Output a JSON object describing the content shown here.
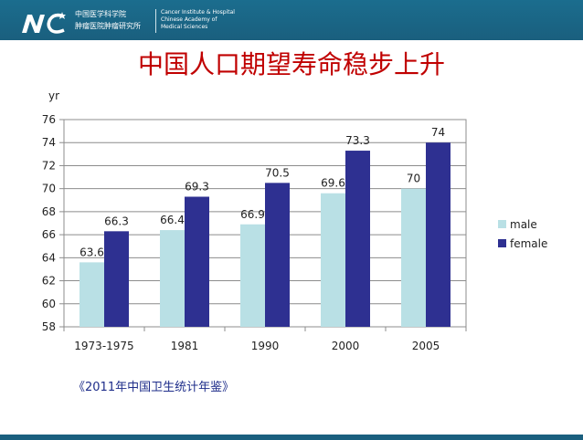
{
  "header": {
    "institution_cn_line1": "中国医学科学院",
    "institution_cn_line2": "肿瘤医院肿瘤研究所",
    "institution_en_line1": "Cancer Institute & Hospital",
    "institution_en_line2": "Chinese Academy of",
    "institution_en_line3": "Medical Sciences",
    "logo_text": "NC",
    "colors": {
      "bar": "#1a5f7e",
      "text": "#ffffff"
    }
  },
  "slide": {
    "title": "中国人口期望寿命稳步上升",
    "source": "《2011年中国卫生统计年鉴》"
  },
  "chart_data": {
    "type": "bar",
    "title": "",
    "xlabel": "",
    "ylabel": "yr",
    "ylim": [
      58,
      76
    ],
    "yticks": [
      58,
      60,
      62,
      64,
      66,
      68,
      70,
      72,
      74,
      76
    ],
    "grid": true,
    "legend_position": "right",
    "categories": [
      "1973-1975",
      "1981",
      "1990",
      "2000",
      "2005"
    ],
    "series": [
      {
        "name": "male",
        "values": [
          63.6,
          66.4,
          66.9,
          69.6,
          70
        ],
        "labels": [
          "63.6",
          "66.4",
          "66.9",
          "69.6",
          "70"
        ],
        "color": "#b9e0e5"
      },
      {
        "name": "female",
        "values": [
          66.3,
          69.3,
          70.5,
          73.3,
          74
        ],
        "labels": [
          "66.3",
          "69.3",
          "70.5",
          "73.3",
          "74"
        ],
        "color": "#2e3091"
      }
    ]
  }
}
